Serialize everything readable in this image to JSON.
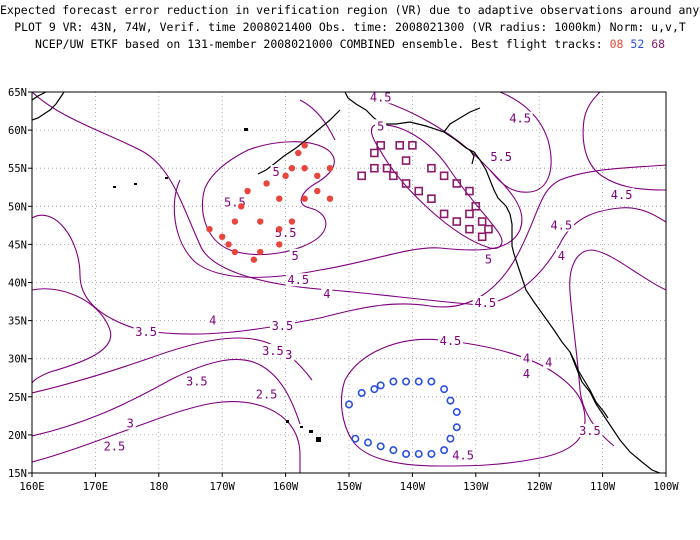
{
  "header": {
    "line1": "Expected forecast error reduction in verification region (VR) due to adaptive observations around any grid point.",
    "line2": "PLOT 9 VR: 43N, 74W, Verif. time 2008021400 Obs. time: 2008021300 (VR radius: 1000km) Norm: u,v,T",
    "line3_prefix": "NCEP/UW ETKF based on 131-member 2008021000 COMBINED ensemble.  Best flight tracks: ",
    "tracks": [
      "08",
      "52",
      "68"
    ]
  },
  "axes": {
    "lat_labels": [
      "65N",
      "60N",
      "55N",
      "50N",
      "45N",
      "40N",
      "35N",
      "30N",
      "25N",
      "20N",
      "15N"
    ],
    "lon_labels": [
      "160E",
      "170E",
      "180",
      "170W",
      "160W",
      "150W",
      "140W",
      "130W",
      "120W",
      "110W",
      "100W"
    ]
  },
  "colors": {
    "contour": "#800080",
    "coast": "#000000",
    "track_08": "#e8453c",
    "track_52": "#2a4fe0",
    "track_68": "#8b1a6b"
  },
  "contour_labels": [
    {
      "text": "4.5",
      "lon": -145,
      "lat": 64.3
    },
    {
      "text": "4.5",
      "lon": -123,
      "lat": 61.5
    },
    {
      "text": "5",
      "lon": -145,
      "lat": 60.5
    },
    {
      "text": "5.5",
      "lon": -126,
      "lat": 56.5
    },
    {
      "text": "5",
      "lon": -161.5,
      "lat": 54.5
    },
    {
      "text": "5.5",
      "lon": -168,
      "lat": 50.5
    },
    {
      "text": "5.5",
      "lon": -160,
      "lat": 46.5
    },
    {
      "text": "5",
      "lon": -158.5,
      "lat": 43.5
    },
    {
      "text": "5",
      "lon": -128,
      "lat": 43
    },
    {
      "text": "4.5",
      "lon": -158,
      "lat": 40.3
    },
    {
      "text": "4.5",
      "lon": -128.5,
      "lat": 37.3
    },
    {
      "text": "4.5",
      "lon": -107,
      "lat": 51.5
    },
    {
      "text": "4.5",
      "lon": -116.5,
      "lat": 47.5
    },
    {
      "text": "4",
      "lon": -116.5,
      "lat": 43.5
    },
    {
      "text": "4",
      "lon": -153.5,
      "lat": 38.5
    },
    {
      "text": "4",
      "lon": -171.5,
      "lat": 35
    },
    {
      "text": "3.5",
      "lon": -160.5,
      "lat": 34.3
    },
    {
      "text": "3.5",
      "lon": -162,
      "lat": 31
    },
    {
      "text": "3",
      "lon": -159.5,
      "lat": 30.5
    },
    {
      "text": "3.5",
      "lon": 178,
      "lat": 33.5
    },
    {
      "text": "3.5",
      "lon": -174,
      "lat": 27
    },
    {
      "text": "3",
      "lon": 175.5,
      "lat": 21.5
    },
    {
      "text": "2.5",
      "lon": -163,
      "lat": 25.3
    },
    {
      "text": "2.5",
      "lon": 173,
      "lat": 18.5
    },
    {
      "text": "4.5",
      "lon": -134,
      "lat": 32.3
    },
    {
      "text": "4",
      "lon": -118.5,
      "lat": 29.5
    },
    {
      "text": "3.5",
      "lon": -112,
      "lat": 20.5
    },
    {
      "text": "4.5",
      "lon": -132,
      "lat": 17.3
    },
    {
      "text": "4",
      "lon": -122,
      "lat": 30
    },
    {
      "text": "4",
      "lon": -122,
      "lat": 28
    }
  ],
  "tracks": [
    {
      "id": "08",
      "shape": "dot",
      "points": [
        [
          -157,
          58
        ],
        [
          -158,
          57
        ],
        [
          -157,
          55
        ],
        [
          -159,
          55
        ],
        [
          -163,
          53
        ],
        [
          -166,
          52
        ],
        [
          -157,
          51
        ],
        [
          -167,
          50
        ],
        [
          -168,
          48
        ],
        [
          -164,
          48
        ],
        [
          -161,
          47
        ],
        [
          -159,
          48
        ],
        [
          -172,
          47
        ],
        [
          -170,
          46
        ],
        [
          -169,
          45
        ],
        [
          -168,
          44
        ],
        [
          -165,
          43
        ],
        [
          -164,
          44
        ],
        [
          -161,
          45
        ],
        [
          -155,
          52
        ],
        [
          -155,
          54
        ],
        [
          -153,
          55
        ],
        [
          -153,
          51
        ],
        [
          -160,
          54
        ],
        [
          -161,
          51
        ]
      ]
    },
    {
      "id": "52",
      "shape": "ring",
      "points": [
        [
          -150,
          24
        ],
        [
          -148,
          25.5
        ],
        [
          -146,
          26
        ],
        [
          -145,
          26.5
        ],
        [
          -143,
          27
        ],
        [
          -141,
          27
        ],
        [
          -139,
          27
        ],
        [
          -137,
          27
        ],
        [
          -135,
          26
        ],
        [
          -134,
          24.5
        ],
        [
          -133,
          23
        ],
        [
          -133,
          21
        ],
        [
          -134,
          19.5
        ],
        [
          -135,
          18
        ],
        [
          -137,
          17.5
        ],
        [
          -139,
          17.5
        ],
        [
          -141,
          17.5
        ],
        [
          -143,
          18
        ],
        [
          -145,
          18.5
        ],
        [
          -147,
          19
        ],
        [
          -149,
          19.5
        ]
      ]
    },
    {
      "id": "68",
      "shape": "square",
      "points": [
        [
          -146,
          57
        ],
        [
          -145,
          58
        ],
        [
          -142,
          58
        ],
        [
          -140,
          58
        ],
        [
          -141,
          56
        ],
        [
          -137,
          55
        ],
        [
          -135,
          54
        ],
        [
          -133,
          53
        ],
        [
          -131,
          52
        ],
        [
          -130,
          50
        ],
        [
          -131,
          49
        ],
        [
          -129,
          48
        ],
        [
          -131,
          47
        ],
        [
          -133,
          48
        ],
        [
          -135,
          49
        ],
        [
          -137,
          51
        ],
        [
          -139,
          52
        ],
        [
          -141,
          53
        ],
        [
          -143,
          54
        ],
        [
          -144,
          55
        ],
        [
          -146,
          55
        ],
        [
          -148,
          54
        ],
        [
          -129,
          46
        ],
        [
          -128,
          47
        ]
      ]
    }
  ]
}
